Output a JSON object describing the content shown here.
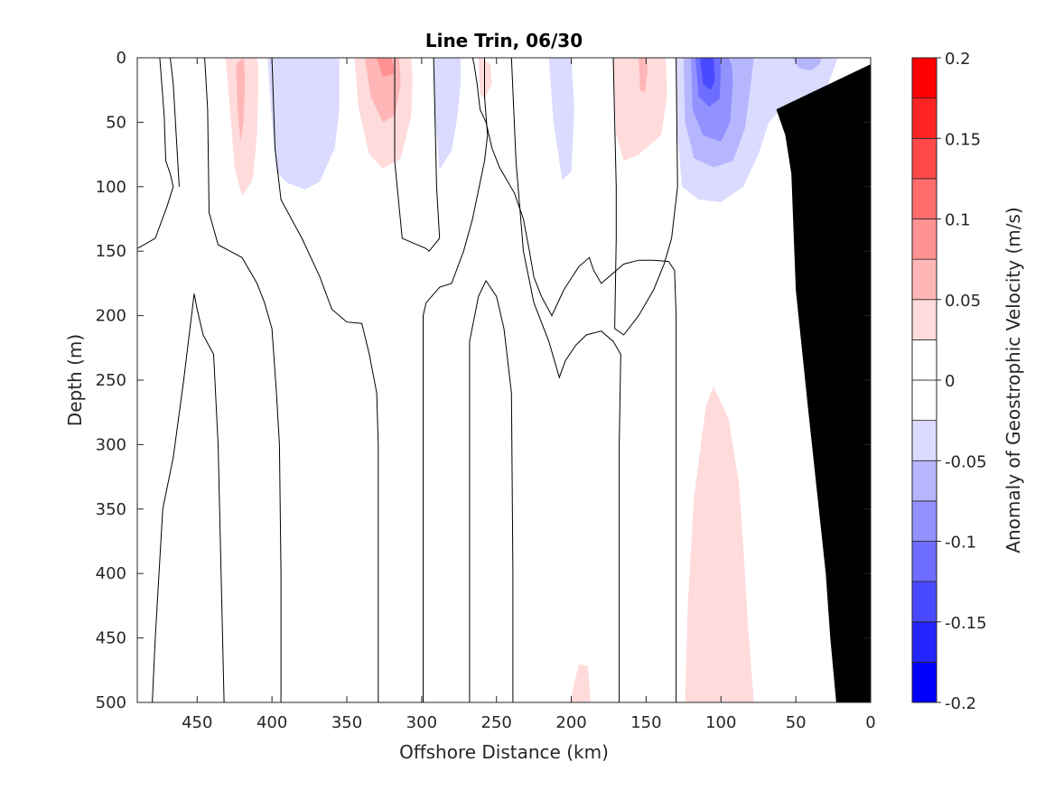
{
  "chart_data": {
    "type": "heatmap",
    "title": "Line Trin, 06/30",
    "xlabel": "Offshore Distance (km)",
    "ylabel": "Depth (m)",
    "xlim": [
      490,
      0
    ],
    "ylim": [
      0,
      500
    ],
    "x_reversed": true,
    "y_reversed": true,
    "x_ticks": [
      450,
      400,
      350,
      300,
      250,
      200,
      150,
      100,
      50,
      0
    ],
    "y_ticks": [
      0,
      50,
      100,
      150,
      200,
      250,
      300,
      350,
      400,
      450,
      500
    ],
    "colorbar": {
      "label": "Anomaly of Geostrophic Velocity (m/s)",
      "range": [
        -0.2,
        0.2
      ],
      "ticks": [
        -0.2,
        -0.15,
        -0.1,
        -0.05,
        0,
        0.05,
        0.1,
        0.15,
        0.2
      ],
      "tick_labels": [
        "-0.2",
        "-0.15",
        "-0.1",
        "-0.05",
        "0",
        "0.05",
        "0.1",
        "0.15",
        "0.2"
      ],
      "levels": [
        {
          "from": -0.2,
          "to": -0.175,
          "color": "#0000ff"
        },
        {
          "from": -0.175,
          "to": -0.15,
          "color": "#2424ff"
        },
        {
          "from": -0.15,
          "to": -0.125,
          "color": "#4949ff"
        },
        {
          "from": -0.125,
          "to": -0.1,
          "color": "#6d6dff"
        },
        {
          "from": -0.1,
          "to": -0.075,
          "color": "#9292ff"
        },
        {
          "from": -0.075,
          "to": -0.05,
          "color": "#b6b6ff"
        },
        {
          "from": -0.05,
          "to": -0.025,
          "color": "#dbdbff"
        },
        {
          "from": -0.025,
          "to": 0,
          "color": "#ffffff"
        },
        {
          "from": 0,
          "to": 0.025,
          "color": "#ffffff"
        },
        {
          "from": 0.025,
          "to": 0.05,
          "color": "#ffdbdb"
        },
        {
          "from": 0.05,
          "to": 0.075,
          "color": "#ffb6b6"
        },
        {
          "from": 0.075,
          "to": 0.1,
          "color": "#ff9292"
        },
        {
          "from": 0.1,
          "to": 0.125,
          "color": "#ff6d6d"
        },
        {
          "from": 0.125,
          "to": 0.15,
          "color": "#ff4949"
        },
        {
          "from": 0.15,
          "to": 0.175,
          "color": "#ff2424"
        },
        {
          "from": 0.175,
          "to": 0.2,
          "color": "#ff0000"
        }
      ]
    },
    "filled_regions": [
      {
        "name": "",
        "color": "#ffdbdb",
        "points": [
          [
            431,
            0
          ],
          [
            428,
            40
          ],
          [
            425,
            85
          ],
          [
            420,
            107
          ],
          [
            413,
            95
          ],
          [
            410,
            60
          ],
          [
            409,
            10
          ],
          [
            410,
            0
          ]
        ]
      },
      {
        "name": "",
        "color": "#ffb6b6",
        "points": [
          [
            424,
            5
          ],
          [
            423,
            40
          ],
          [
            421,
            65
          ],
          [
            419,
            50
          ],
          [
            418,
            15
          ],
          [
            419,
            0
          ]
        ]
      },
      {
        "name": "",
        "color": "#dbdbff",
        "points": [
          [
            403,
            0
          ],
          [
            400,
            50
          ],
          [
            397,
            88
          ],
          [
            390,
            97
          ],
          [
            378,
            102
          ],
          [
            368,
            96
          ],
          [
            358,
            70
          ],
          [
            355,
            40
          ],
          [
            355,
            0
          ]
        ]
      },
      {
        "name": "",
        "color": "#ffdbdb",
        "points": [
          [
            345,
            0
          ],
          [
            342,
            40
          ],
          [
            335,
            75
          ],
          [
            326,
            86
          ],
          [
            314,
            78
          ],
          [
            307,
            45
          ],
          [
            306,
            15
          ],
          [
            307,
            0
          ]
        ]
      },
      {
        "name": "",
        "color": "#ffb6b6",
        "points": [
          [
            338,
            0
          ],
          [
            334,
            30
          ],
          [
            326,
            50
          ],
          [
            318,
            45
          ],
          [
            314,
            20
          ],
          [
            315,
            0
          ]
        ]
      },
      {
        "name": "",
        "color": "#ff9292",
        "points": [
          [
            330,
            0
          ],
          [
            326,
            15
          ],
          [
            318,
            12
          ],
          [
            320,
            0
          ]
        ]
      },
      {
        "name": "",
        "color": "#dbdbff",
        "points": [
          [
            292,
            0
          ],
          [
            291,
            45
          ],
          [
            288,
            87
          ],
          [
            280,
            72
          ],
          [
            276,
            45
          ],
          [
            274,
            20
          ],
          [
            274,
            0
          ]
        ]
      },
      {
        "name": "",
        "color": "#ffdbdb",
        "points": [
          [
            262,
            0
          ],
          [
            261,
            28
          ],
          [
            258,
            32
          ],
          [
            253,
            20
          ],
          [
            254,
            5
          ],
          [
            260,
            0
          ]
        ]
      },
      {
        "name": "",
        "color": "#dbdbff",
        "points": [
          [
            215,
            0
          ],
          [
            212,
            50
          ],
          [
            206,
            95
          ],
          [
            200,
            88
          ],
          [
            198,
            40
          ],
          [
            200,
            0
          ]
        ]
      },
      {
        "name": "",
        "color": "#ffdbdb",
        "points": [
          [
            172,
            0
          ],
          [
            170,
            60
          ],
          [
            165,
            80
          ],
          [
            155,
            75
          ],
          [
            140,
            60
          ],
          [
            136,
            30
          ],
          [
            137,
            0
          ]
        ]
      },
      {
        "name": "",
        "color": "#ffb6b6",
        "points": [
          [
            155,
            0
          ],
          [
            154,
            25
          ],
          [
            151,
            27
          ],
          [
            149,
            10
          ],
          [
            150,
            0
          ]
        ]
      },
      {
        "name": "",
        "color": "#dbdbff",
        "points": [
          [
            130,
            0
          ],
          [
            129,
            60
          ],
          [
            126,
            100
          ],
          [
            115,
            110
          ],
          [
            100,
            112
          ],
          [
            85,
            100
          ],
          [
            75,
            75
          ],
          [
            68,
            50
          ],
          [
            60,
            40
          ],
          [
            50,
            45
          ],
          [
            40,
            40
          ],
          [
            30,
            25
          ],
          [
            25,
            10
          ],
          [
            22,
            0
          ]
        ]
      },
      {
        "name": "",
        "color": "#b6b6ff",
        "points": [
          [
            125,
            0
          ],
          [
            124,
            50
          ],
          [
            118,
            78
          ],
          [
            105,
            85
          ],
          [
            92,
            80
          ],
          [
            84,
            55
          ],
          [
            80,
            20
          ],
          [
            78,
            0
          ]
        ]
      },
      {
        "name": "",
        "color": "#9292ff",
        "points": [
          [
            120,
            0
          ],
          [
            119,
            40
          ],
          [
            112,
            60
          ],
          [
            100,
            65
          ],
          [
            94,
            50
          ],
          [
            92,
            20
          ],
          [
            93,
            0
          ]
        ]
      },
      {
        "name": "",
        "color": "#6d6dff",
        "points": [
          [
            117,
            0
          ],
          [
            115,
            30
          ],
          [
            108,
            38
          ],
          [
            101,
            32
          ],
          [
            100,
            10
          ],
          [
            101,
            0
          ]
        ]
      },
      {
        "name": "",
        "color": "#4949ff",
        "points": [
          [
            114,
            0
          ],
          [
            112,
            20
          ],
          [
            107,
            25
          ],
          [
            104,
            18
          ],
          [
            105,
            0
          ]
        ]
      },
      {
        "name": "",
        "color": "#b6b6ff",
        "points": [
          [
            95,
            0
          ],
          [
            92,
            8
          ],
          [
            88,
            12
          ],
          [
            86,
            5
          ],
          [
            87,
            0
          ]
        ]
      },
      {
        "name": "",
        "color": "#b6b6ff",
        "points": [
          [
            52,
            0
          ],
          [
            48,
            8
          ],
          [
            40,
            10
          ],
          [
            34,
            5
          ],
          [
            33,
            0
          ]
        ]
      },
      {
        "name": "",
        "color": "#ffdbdb",
        "points": [
          [
            124,
            500
          ],
          [
            122,
            420
          ],
          [
            118,
            340
          ],
          [
            110,
            270
          ],
          [
            105,
            255
          ],
          [
            95,
            280
          ],
          [
            88,
            330
          ],
          [
            85,
            380
          ],
          [
            82,
            440
          ],
          [
            78,
            500
          ]
        ]
      },
      {
        "name": "",
        "color": "#ffdbdb",
        "points": [
          [
            201,
            500
          ],
          [
            195,
            470
          ],
          [
            189,
            472
          ],
          [
            187,
            500
          ]
        ]
      }
    ],
    "zero_contours": [
      [
        [
          490,
          148
        ],
        [
          478,
          140
        ],
        [
          470,
          115
        ],
        [
          466,
          100
        ],
        [
          468,
          90
        ],
        [
          471,
          80
        ],
        [
          472,
          45
        ],
        [
          475,
          0
        ]
      ],
      [
        [
          445,
          0
        ],
        [
          443,
          40
        ],
        [
          442,
          120
        ],
        [
          436,
          145
        ],
        [
          420,
          155
        ],
        [
          410,
          175
        ],
        [
          405,
          190
        ],
        [
          400,
          210
        ],
        [
          397,
          260
        ],
        [
          395,
          300
        ],
        [
          394,
          400
        ],
        [
          394,
          500
        ]
      ],
      [
        [
          468,
          0
        ],
        [
          466,
          20
        ],
        [
          464,
          60
        ],
        [
          462,
          100
        ]
      ],
      [
        [
          400,
          0
        ],
        [
          398,
          70
        ],
        [
          394,
          110
        ],
        [
          380,
          140
        ],
        [
          368,
          170
        ],
        [
          360,
          195
        ],
        [
          350,
          205
        ],
        [
          340,
          206
        ],
        [
          335,
          230
        ],
        [
          330,
          260
        ],
        [
          329,
          300
        ],
        [
          329,
          400
        ],
        [
          329,
          500
        ]
      ],
      [
        [
          318,
          0
        ],
        [
          318,
          80
        ],
        [
          313,
          140
        ],
        [
          297,
          148
        ],
        [
          295,
          150
        ],
        [
          288,
          140
        ],
        [
          290,
          100
        ],
        [
          291,
          50
        ],
        [
          292,
          0
        ]
      ],
      [
        [
          480,
          500
        ],
        [
          478,
          450
        ],
        [
          473,
          350
        ],
        [
          466,
          310
        ],
        [
          459,
          250
        ],
        [
          452,
          183
        ],
        [
          450,
          195
        ],
        [
          446,
          215
        ],
        [
          439,
          230
        ],
        [
          436,
          300
        ],
        [
          434,
          400
        ],
        [
          432,
          500
        ]
      ],
      [
        [
          299,
          500
        ],
        [
          299,
          400
        ],
        [
          299,
          300
        ],
        [
          299,
          200
        ],
        [
          297,
          190
        ],
        [
          288,
          178
        ],
        [
          280,
          175
        ],
        [
          272,
          150
        ],
        [
          266,
          125
        ],
        [
          258,
          80
        ],
        [
          256,
          60
        ],
        [
          258,
          30
        ],
        [
          258,
          0
        ]
      ],
      [
        [
          268,
          500
        ],
        [
          268,
          400
        ],
        [
          268,
          300
        ],
        [
          268,
          220
        ],
        [
          262,
          185
        ],
        [
          257,
          173
        ],
        [
          250,
          185
        ],
        [
          245,
          210
        ],
        [
          240,
          260
        ],
        [
          239,
          400
        ],
        [
          239,
          500
        ]
      ],
      [
        [
          240,
          0
        ],
        [
          237,
          80
        ],
        [
          232,
          150
        ],
        [
          225,
          190
        ],
        [
          215,
          220
        ],
        [
          208,
          248
        ],
        [
          204,
          235
        ],
        [
          197,
          223
        ],
        [
          190,
          215
        ],
        [
          180,
          212
        ],
        [
          172,
          220
        ],
        [
          167,
          230
        ],
        [
          168,
          300
        ],
        [
          168,
          400
        ],
        [
          168,
          500
        ]
      ],
      [
        [
          172,
          0
        ],
        [
          171,
          50
        ],
        [
          170,
          100
        ],
        [
          170,
          140
        ],
        [
          171,
          210
        ],
        [
          165,
          215
        ],
        [
          155,
          200
        ],
        [
          145,
          180
        ],
        [
          138,
          160
        ],
        [
          133,
          140
        ],
        [
          129,
          100
        ],
        [
          130,
          0
        ]
      ],
      [
        [
          130,
          500
        ],
        [
          130,
          400
        ],
        [
          130,
          300
        ],
        [
          130,
          200
        ],
        [
          131,
          165
        ],
        [
          135,
          158
        ],
        [
          145,
          157
        ],
        [
          155,
          157
        ],
        [
          165,
          160
        ],
        [
          175,
          170
        ],
        [
          180,
          175
        ],
        [
          185,
          165
        ],
        [
          188,
          155
        ],
        [
          195,
          162
        ],
        [
          205,
          180
        ],
        [
          213,
          200
        ],
        [
          220,
          185
        ],
        [
          225,
          170
        ],
        [
          228,
          150
        ],
        [
          232,
          125
        ],
        [
          238,
          105
        ],
        [
          248,
          85
        ],
        [
          253,
          70
        ],
        [
          257,
          50
        ],
        [
          261,
          40
        ],
        [
          263,
          20
        ],
        [
          265,
          5
        ],
        [
          266,
          0
        ]
      ]
    ],
    "bathymetry": {
      "color": "#000000",
      "points": [
        [
          0,
          5
        ],
        [
          0,
          500
        ],
        [
          23,
          500
        ],
        [
          27,
          450
        ],
        [
          30,
          400
        ],
        [
          42,
          270
        ],
        [
          50,
          180
        ],
        [
          53,
          90
        ],
        [
          57,
          60
        ],
        [
          63,
          40
        ],
        [
          0,
          5
        ]
      ]
    }
  }
}
